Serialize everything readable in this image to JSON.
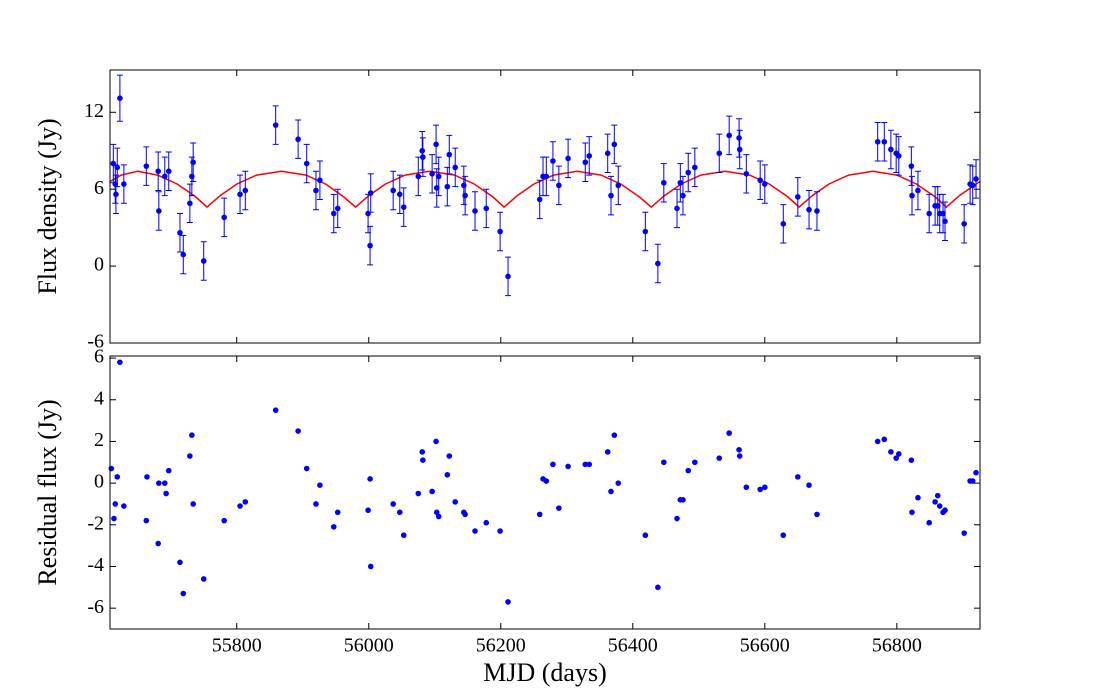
{
  "chart_data": [
    {
      "type": "errorbar",
      "ylabel": "Flux density (Jy)",
      "color": "#0000ff",
      "xlim": [
        55608,
        56926
      ],
      "xticks": [
        55800,
        56000,
        56200,
        56400,
        56600,
        56800
      ],
      "ylim": [
        -6,
        15.3
      ],
      "yticks": [
        -6,
        0,
        6,
        12
      ],
      "x": [
        55613,
        55616,
        55617,
        55619,
        55623,
        55629,
        55663,
        55681,
        55682,
        55691,
        55697,
        55714,
        55719,
        55729,
        55732,
        55734,
        55750,
        55781,
        55805,
        55813,
        55859,
        55893,
        55906,
        55920,
        55926,
        55947,
        55953,
        55999,
        56002,
        56003,
        56037,
        56047,
        56053,
        56075,
        56081,
        56082,
        56096,
        56102,
        56103,
        56106,
        56119,
        56122,
        56131,
        56144,
        56146,
        56161,
        56178,
        56199,
        56211,
        56259,
        56264,
        56269,
        56279,
        56288,
        56302,
        56328,
        56334,
        56362,
        56367,
        56372,
        56378,
        56419,
        56438,
        56447,
        56467,
        56472,
        56476,
        56484,
        56494,
        56531,
        56546,
        56561,
        56562,
        56572,
        56593,
        56600,
        56628,
        56650,
        56667,
        56679,
        56771,
        56781,
        56791,
        56799,
        56803,
        56822,
        56823,
        56832,
        56849,
        56858,
        56862,
        56865,
        56870,
        56873,
        56902,
        56911,
        56915,
        56920
      ],
      "values": [
        8.0,
        6.4,
        5.6,
        7.7,
        13.1,
        6.4,
        7.8,
        7.4,
        4.3,
        7.0,
        7.4,
        2.6,
        0.9,
        4.9,
        7.0,
        8.1,
        0.4,
        3.8,
        5.6,
        5.9,
        11.0,
        9.9,
        8.0,
        5.9,
        6.7,
        4.1,
        4.5,
        4.1,
        1.6,
        5.7,
        5.9,
        5.6,
        4.6,
        7.0,
        9.0,
        8.5,
        7.2,
        9.5,
        6.1,
        7.0,
        6.2,
        8.7,
        7.7,
        6.3,
        5.5,
        4.3,
        4.5,
        2.7,
        -0.8,
        5.2,
        7.0,
        7.0,
        8.2,
        6.3,
        8.4,
        8.1,
        8.6,
        8.8,
        5.5,
        9.5,
        6.3,
        2.7,
        0.2,
        6.5,
        4.5,
        6.5,
        5.5,
        7.3,
        7.7,
        8.8,
        10.2,
        10.0,
        9.1,
        7.2,
        6.7,
        6.4,
        3.3,
        5.4,
        4.4,
        4.3,
        9.7,
        9.7,
        9.1,
        8.8,
        8.6,
        7.8,
        5.5,
        5.9,
        4.1,
        4.7,
        4.7,
        4.1,
        4.1,
        3.5,
        3.3,
        6.4,
        6.3,
        6.8
      ],
      "errors": [
        1.5,
        1.5,
        1.5,
        1.5,
        1.8,
        1.5,
        1.5,
        1.5,
        1.5,
        1.5,
        1.5,
        1.5,
        1.5,
        1.5,
        1.5,
        1.5,
        1.5,
        1.5,
        1.5,
        1.5,
        1.5,
        1.5,
        1.5,
        1.5,
        1.5,
        1.5,
        1.5,
        1.5,
        1.5,
        1.5,
        1.5,
        1.5,
        1.5,
        1.5,
        1.5,
        1.5,
        1.5,
        1.5,
        1.5,
        1.5,
        1.5,
        1.5,
        1.5,
        1.5,
        1.5,
        1.5,
        1.5,
        1.5,
        1.5,
        1.5,
        1.5,
        1.5,
        1.5,
        1.5,
        1.5,
        1.5,
        1.5,
        1.5,
        1.5,
        1.5,
        1.5,
        1.5,
        1.5,
        1.5,
        1.5,
        1.5,
        1.5,
        1.5,
        1.5,
        1.5,
        1.5,
        1.5,
        1.5,
        1.5,
        1.5,
        1.5,
        1.5,
        1.5,
        1.5,
        1.5,
        1.5,
        1.5,
        1.5,
        1.5,
        1.5,
        1.5,
        1.5,
        1.5,
        1.5,
        1.5,
        1.5,
        1.5,
        1.5,
        1.5,
        1.5,
        1.5,
        1.5,
        1.5
      ],
      "model": {
        "color": "#ff0000",
        "x": [
          55608,
          55625,
          55650,
          55680,
          55710,
          55738,
          55755,
          55775,
          55800,
          55830,
          55868,
          55905,
          55935,
          55962,
          55980,
          56000,
          56025,
          56055,
          56092,
          56130,
          56160,
          56188,
          56205,
          56225,
          56250,
          56280,
          56316,
          56352,
          56382,
          56410,
          56428,
          56448,
          56473,
          56503,
          56540,
          56577,
          56607,
          56635,
          56652,
          56672,
          56697,
          56727,
          56764,
          56800,
          56830,
          56858,
          56875,
          56895,
          56920,
          56926
        ],
        "values": [
          6.6,
          7.1,
          7.4,
          7.1,
          6.4,
          5.4,
          4.6,
          5.5,
          6.4,
          7.1,
          7.4,
          7.1,
          6.4,
          5.4,
          4.6,
          5.5,
          6.4,
          7.1,
          7.4,
          7.1,
          6.4,
          5.4,
          4.6,
          5.5,
          6.4,
          7.1,
          7.4,
          7.1,
          6.4,
          5.4,
          4.6,
          5.5,
          6.4,
          7.1,
          7.4,
          7.1,
          6.4,
          5.4,
          4.6,
          5.5,
          6.4,
          7.1,
          7.4,
          7.1,
          6.4,
          5.4,
          4.6,
          5.5,
          6.4,
          6.6
        ]
      }
    },
    {
      "type": "scatter",
      "xlabel": "MJD (days)",
      "ylabel": "Residual flux (Jy)",
      "color": "#0000ff",
      "xlim": [
        55608,
        56926
      ],
      "xticks": [
        55800,
        56000,
        56200,
        56400,
        56600,
        56800
      ],
      "ylim": [
        -7,
        6.1
      ],
      "yticks": [
        -6,
        -4,
        -2,
        0,
        2,
        4,
        6
      ],
      "x": [
        55610,
        55614,
        55616,
        55619,
        55623,
        55629,
        55663,
        55664,
        55681,
        55682,
        55691,
        55693,
        55697,
        55714,
        55719,
        55729,
        55732,
        55734,
        55750,
        55781,
        55805,
        55813,
        55859,
        55893,
        55906,
        55920,
        55926,
        55947,
        55953,
        55999,
        56002,
        56003,
        56037,
        56047,
        56053,
        56075,
        56081,
        56082,
        56096,
        56102,
        56103,
        56106,
        56119,
        56122,
        56131,
        56144,
        56146,
        56161,
        56178,
        56199,
        56211,
        56259,
        56264,
        56269,
        56279,
        56288,
        56302,
        56328,
        56334,
        56362,
        56367,
        56372,
        56378,
        56419,
        56438,
        56447,
        56467,
        56472,
        56476,
        56484,
        56494,
        56531,
        56546,
        56561,
        56562,
        56572,
        56593,
        56600,
        56628,
        56650,
        56667,
        56679,
        56771,
        56781,
        56791,
        56799,
        56803,
        56822,
        56823,
        56832,
        56849,
        56858,
        56862,
        56865,
        56870,
        56873,
        56902,
        56911,
        56915,
        56920
      ],
      "values": [
        0.7,
        -1.7,
        -1.0,
        0.3,
        5.8,
        -1.1,
        -1.8,
        0.3,
        -2.9,
        0.0,
        0.0,
        -0.5,
        0.6,
        -3.8,
        -5.3,
        1.3,
        2.3,
        -1.0,
        -4.6,
        -1.8,
        -1.1,
        -0.9,
        3.5,
        2.5,
        0.7,
        -1.0,
        -0.1,
        -2.1,
        -1.4,
        -1.3,
        0.2,
        -4.0,
        -1.0,
        -1.4,
        -2.5,
        -0.5,
        1.5,
        1.1,
        -0.4,
        2.0,
        -1.4,
        -1.6,
        0.4,
        1.3,
        -0.9,
        -1.4,
        -1.5,
        -2.3,
        -1.9,
        -2.3,
        -5.7,
        -1.5,
        0.2,
        0.1,
        0.9,
        -1.2,
        0.8,
        0.9,
        0.9,
        1.5,
        -0.4,
        2.3,
        0.0,
        -2.5,
        -5.0,
        1.0,
        -1.7,
        -0.8,
        -0.8,
        0.6,
        1.0,
        1.2,
        2.4,
        1.6,
        1.3,
        -0.2,
        -0.3,
        -0.2,
        -2.5,
        0.3,
        -0.1,
        -1.5,
        2.0,
        2.1,
        1.5,
        1.2,
        1.4,
        1.1,
        -1.4,
        -0.7,
        -1.9,
        -0.9,
        -0.6,
        -1.1,
        -1.4,
        -1.3,
        -2.4,
        0.1,
        0.1,
        0.5
      ]
    }
  ]
}
